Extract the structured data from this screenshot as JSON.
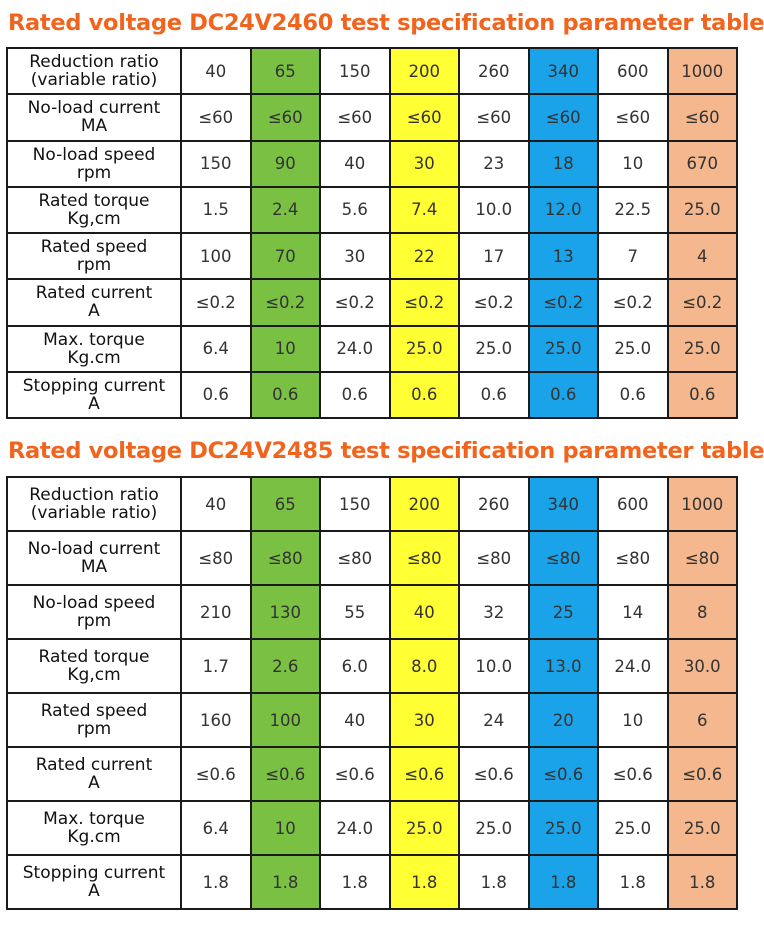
{
  "colors": {
    "title": "#f0641e",
    "columns": [
      "#ffffff",
      "#7ac143",
      "#ffffff",
      "#ffff33",
      "#ffffff",
      "#1aa3e8",
      "#ffffff",
      "#f5b78e"
    ]
  },
  "tables": [
    {
      "title": "Rated voltage DC24V2460 test specification parameter table",
      "rows": [
        {
          "label": [
            "Reduction ratio",
            "(variable ratio)"
          ],
          "values": [
            "40",
            "65",
            "150",
            "200",
            "260",
            "340",
            "600",
            "1000"
          ]
        },
        {
          "label": [
            "No-load current",
            "MA"
          ],
          "values": [
            "≤60",
            "≤60",
            "≤60",
            "≤60",
            "≤60",
            "≤60",
            "≤60",
            "≤60"
          ]
        },
        {
          "label": [
            "No-load speed",
            "rpm"
          ],
          "values": [
            "150",
            "90",
            "40",
            "30",
            "23",
            "18",
            "10",
            "670"
          ]
        },
        {
          "label": [
            "Rated torque",
            "Kg,cm"
          ],
          "values": [
            "1.5",
            "2.4",
            "5.6",
            "7.4",
            "10.0",
            "12.0",
            "22.5",
            "25.0"
          ]
        },
        {
          "label": [
            "Rated speed",
            "rpm"
          ],
          "values": [
            "100",
            "70",
            "30",
            "22",
            "17",
            "13",
            "7",
            "4"
          ]
        },
        {
          "label": [
            "Rated current",
            "A"
          ],
          "values": [
            "≤0.2",
            "≤0.2",
            "≤0.2",
            "≤0.2",
            "≤0.2",
            "≤0.2",
            "≤0.2",
            "≤0.2"
          ]
        },
        {
          "label": [
            "Max. torque",
            "Kg.cm"
          ],
          "values": [
            "6.4",
            "10",
            "24.0",
            "25.0",
            "25.0",
            "25.0",
            "25.0",
            "25.0"
          ]
        },
        {
          "label": [
            "Stopping current",
            "A"
          ],
          "values": [
            "0.6",
            "0.6",
            "0.6",
            "0.6",
            "0.6",
            "0.6",
            "0.6",
            "0.6"
          ]
        }
      ]
    },
    {
      "title": "Rated voltage DC24V2485 test specification parameter table",
      "rows": [
        {
          "label": [
            "Reduction ratio",
            "(variable ratio)"
          ],
          "values": [
            "40",
            "65",
            "150",
            "200",
            "260",
            "340",
            "600",
            "1000"
          ]
        },
        {
          "label": [
            "No-load current",
            "MA"
          ],
          "values": [
            "≤80",
            "≤80",
            "≤80",
            "≤80",
            "≤80",
            "≤80",
            "≤80",
            "≤80"
          ]
        },
        {
          "label": [
            "No-load speed",
            "rpm"
          ],
          "values": [
            "210",
            "130",
            "55",
            "40",
            "32",
            "25",
            "14",
            "8"
          ]
        },
        {
          "label": [
            "Rated torque",
            "Kg,cm"
          ],
          "values": [
            "1.7",
            "2.6",
            "6.0",
            "8.0",
            "10.0",
            "13.0",
            "24.0",
            "30.0"
          ]
        },
        {
          "label": [
            "Rated speed",
            "rpm"
          ],
          "values": [
            "160",
            "100",
            "40",
            "30",
            "24",
            "20",
            "10",
            "6"
          ]
        },
        {
          "label": [
            "Rated current",
            "A"
          ],
          "values": [
            "≤0.6",
            "≤0.6",
            "≤0.6",
            "≤0.6",
            "≤0.6",
            "≤0.6",
            "≤0.6",
            "≤0.6"
          ]
        },
        {
          "label": [
            "Max. torque",
            "Kg.cm"
          ],
          "values": [
            "6.4",
            "10",
            "24.0",
            "25.0",
            "25.0",
            "25.0",
            "25.0",
            "25.0"
          ]
        },
        {
          "label": [
            "Stopping current",
            "A"
          ],
          "values": [
            "1.8",
            "1.8",
            "1.8",
            "1.8",
            "1.8",
            "1.8",
            "1.8",
            "1.8"
          ]
        }
      ]
    }
  ]
}
